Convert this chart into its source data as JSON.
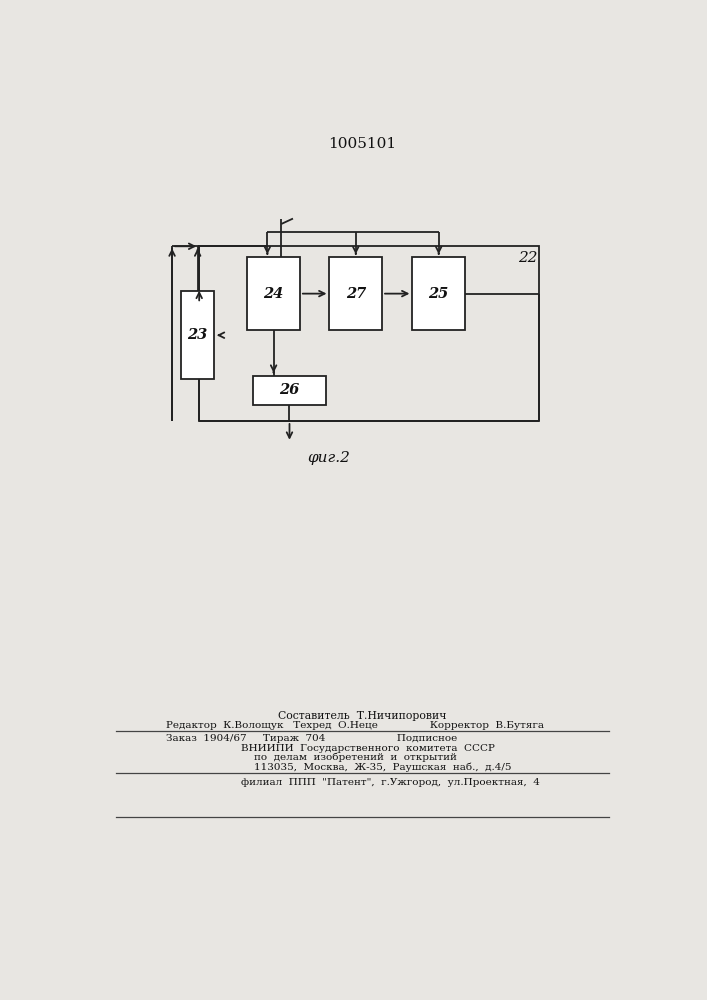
{
  "title": "1005101",
  "fig_caption": "φиг.2",
  "label_22": "22",
  "label_23": "23",
  "label_24": "24",
  "label_25": "25",
  "label_26": "26",
  "label_27": "27",
  "footer_line1": "Составитель  Т.Ничипорович",
  "footer_line2": "Редактор  К.Волощук   Техред  О.Неце                Корректор  В.Бутяга",
  "footer_line3": "Заказ  1904/67     Тираж  704                      Подписное",
  "footer_line4": "    ВНИИПИ  Государственного  комитета  СССР",
  "footer_line5": "        по  делам  изобретений  и  открытий",
  "footer_line6": "        113035,  Москва,  Ж-35,  Раушская  наб.,  д.4/5",
  "footer_line7": "    филиал  ППП  \"Патент\",  г.Ужгород,  ул.Проектная,  4",
  "bg_color": "#e8e6e2",
  "line_color": "#222222",
  "text_color": "#111111"
}
